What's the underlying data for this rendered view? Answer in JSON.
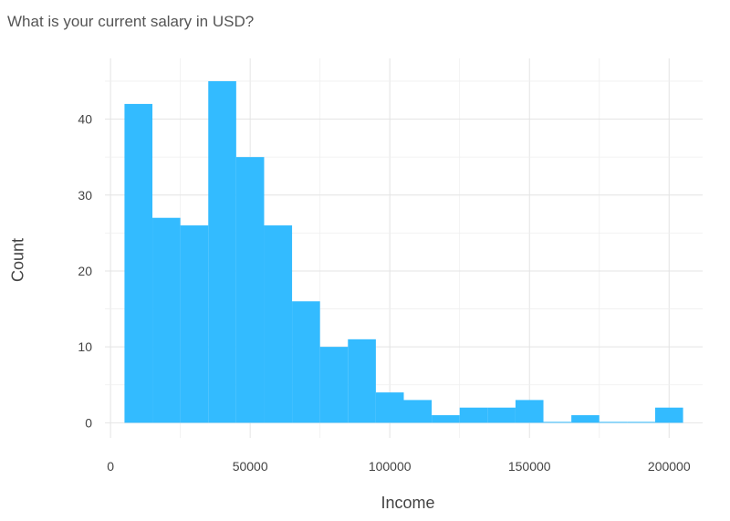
{
  "chart_data": {
    "type": "bar",
    "title": "What is your current salary in USD?",
    "xlabel": "Income",
    "ylabel": "Count",
    "bin_width": 10000,
    "bin_starts": [
      5000,
      15000,
      25000,
      35000,
      45000,
      55000,
      65000,
      75000,
      85000,
      95000,
      105000,
      115000,
      125000,
      135000,
      145000,
      155000,
      165000,
      175000,
      185000,
      195000
    ],
    "values": [
      42,
      27,
      26,
      45,
      35,
      26,
      16,
      10,
      11,
      4,
      3,
      1,
      2,
      2,
      3,
      0,
      1,
      0,
      0,
      2
    ],
    "xlim": [
      -2000,
      212000
    ],
    "ylim": [
      -2,
      48
    ],
    "x_ticks": [
      0,
      50000,
      100000,
      150000,
      200000
    ],
    "x_tick_labels": [
      "0",
      "50000",
      "100000",
      "150000",
      "200000"
    ],
    "y_ticks": [
      0,
      10,
      20,
      30,
      40
    ],
    "y_tick_labels": [
      "0",
      "10",
      "20",
      "30",
      "40"
    ],
    "bar_color": "#33bbff",
    "grid": true,
    "legend": "none"
  }
}
